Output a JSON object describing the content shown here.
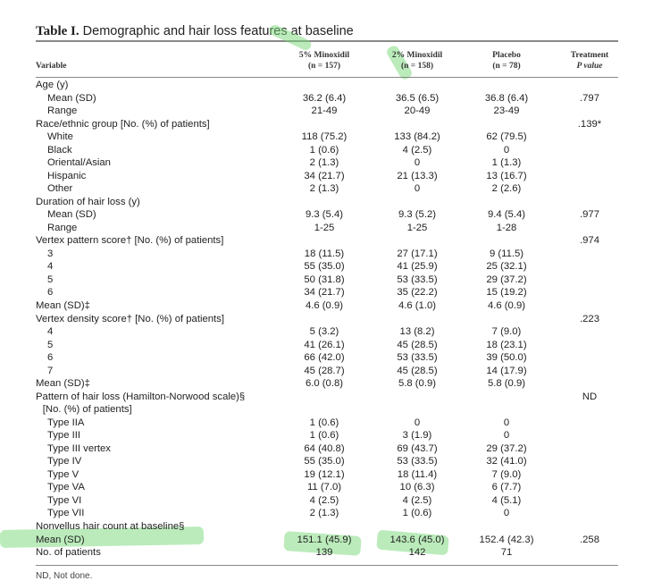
{
  "title": {
    "label": "Table I.",
    "text": "Demographic and hair loss features at baseline"
  },
  "columns": {
    "variable": "Variable",
    "c1": [
      "5% Minoxidil",
      "(n = 157)"
    ],
    "c2": [
      "2% Minoxidil",
      "(n = 158)"
    ],
    "c3": [
      "Placebo",
      "(n = 78)"
    ],
    "c4": [
      "Treatment",
      "P value"
    ]
  },
  "rows": [
    {
      "label": "Age (y)",
      "indent": 0,
      "v": [
        "",
        "",
        "",
        ""
      ]
    },
    {
      "label": "Mean (SD)",
      "indent": 1,
      "v": [
        "36.2 (6.4)",
        "36.5 (6.5)",
        "36.8 (6.4)",
        ".797"
      ]
    },
    {
      "label": "Range",
      "indent": 1,
      "v": [
        "21-49",
        "20-49",
        "23-49",
        ""
      ]
    },
    {
      "label": "Race/ethnic group [No. (%) of patients]",
      "indent": 0,
      "v": [
        "",
        "",
        "",
        ".139*"
      ]
    },
    {
      "label": "White",
      "indent": 1,
      "v": [
        "118 (75.2)",
        "133 (84.2)",
        "62 (79.5)",
        ""
      ]
    },
    {
      "label": "Black",
      "indent": 1,
      "v": [
        "1 (0.6)",
        "4 (2.5)",
        "0",
        ""
      ]
    },
    {
      "label": "Oriental/Asian",
      "indent": 1,
      "v": [
        "2 (1.3)",
        "0",
        "1 (1.3)",
        ""
      ]
    },
    {
      "label": "Hispanic",
      "indent": 1,
      "v": [
        "34 (21.7)",
        "21 (13.3)",
        "13 (16.7)",
        ""
      ]
    },
    {
      "label": "Other",
      "indent": 1,
      "v": [
        "2 (1.3)",
        "0",
        "2 (2.6)",
        ""
      ]
    },
    {
      "label": "Duration of hair loss (y)",
      "indent": 0,
      "v": [
        "",
        "",
        "",
        ""
      ]
    },
    {
      "label": "Mean (SD)",
      "indent": 1,
      "v": [
        "9.3 (5.4)",
        "9.3 (5.2)",
        "9.4 (5.4)",
        ".977"
      ]
    },
    {
      "label": "Range",
      "indent": 1,
      "v": [
        "1-25",
        "1-25",
        "1-28",
        ""
      ]
    },
    {
      "label": "Vertex pattern score† [No. (%) of patients]",
      "indent": 0,
      "v": [
        "",
        "",
        "",
        ".974"
      ]
    },
    {
      "label": "3",
      "indent": 1,
      "v": [
        "18 (11.5)",
        "27 (17.1)",
        "9 (11.5)",
        ""
      ]
    },
    {
      "label": "4",
      "indent": 1,
      "v": [
        "55 (35.0)",
        "41 (25.9)",
        "25 (32.1)",
        ""
      ]
    },
    {
      "label": "5",
      "indent": 1,
      "v": [
        "50 (31.8)",
        "53 (33.5)",
        "29 (37.2)",
        ""
      ]
    },
    {
      "label": "6",
      "indent": 1,
      "v": [
        "34 (21.7)",
        "35 (22.2)",
        "15 (19.2)",
        ""
      ]
    },
    {
      "label": "Mean (SD)‡",
      "indent": 0,
      "v": [
        "4.6 (0.9)",
        "4.6 (1.0)",
        "4.6 (0.9)",
        ""
      ]
    },
    {
      "label": "Vertex density score† [No. (%) of patients]",
      "indent": 0,
      "v": [
        "",
        "",
        "",
        ".223"
      ]
    },
    {
      "label": "4",
      "indent": 1,
      "v": [
        "5 (3.2)",
        "13 (8.2)",
        "7 (9.0)",
        ""
      ]
    },
    {
      "label": "5",
      "indent": 1,
      "v": [
        "41 (26.1)",
        "45 (28.5)",
        "18 (23.1)",
        ""
      ]
    },
    {
      "label": "6",
      "indent": 1,
      "v": [
        "66 (42.0)",
        "53 (33.5)",
        "39 (50.0)",
        ""
      ]
    },
    {
      "label": "7",
      "indent": 1,
      "v": [
        "45 (28.7)",
        "45 (28.5)",
        "14 (17.9)",
        ""
      ]
    },
    {
      "label": "Mean (SD)‡",
      "indent": 0,
      "v": [
        "6.0 (0.8)",
        "5.8 (0.9)",
        "5.8 (0.9)",
        ""
      ]
    },
    {
      "label": "Pattern of hair loss (Hamilton-Norwood scale)§",
      "indent": 0,
      "v": [
        "",
        "",
        "",
        "ND"
      ]
    },
    {
      "label": "[No. (%) of patients]",
      "indent": 0.6,
      "v": [
        "",
        "",
        "",
        ""
      ]
    },
    {
      "label": "Type IIA",
      "indent": 1,
      "v": [
        "1 (0.6)",
        "0",
        "0",
        ""
      ]
    },
    {
      "label": "Type III",
      "indent": 1,
      "v": [
        "1 (0.6)",
        "3 (1.9)",
        "0",
        ""
      ]
    },
    {
      "label": "Type III vertex",
      "indent": 1,
      "v": [
        "64 (40.8)",
        "69 (43.7)",
        "29 (37.2)",
        ""
      ]
    },
    {
      "label": "Type IV",
      "indent": 1,
      "v": [
        "55 (35.0)",
        "53 (33.5)",
        "32 (41.0)",
        ""
      ]
    },
    {
      "label": "Type V",
      "indent": 1,
      "v": [
        "19 (12.1)",
        "18 (11.4)",
        "7 (9.0)",
        ""
      ]
    },
    {
      "label": "Type VA",
      "indent": 1,
      "v": [
        "11 (7.0)",
        "10 (6.3)",
        "6 (7.7)",
        ""
      ]
    },
    {
      "label": "Type VI",
      "indent": 1,
      "v": [
        "4 (2.5)",
        "4 (2.5)",
        "4 (5.1)",
        ""
      ]
    },
    {
      "label": "Type VII",
      "indent": 1,
      "v": [
        "2 (1.3)",
        "1 (0.6)",
        "0",
        ""
      ]
    },
    {
      "label": "Nonvellus hair count at baseline§",
      "indent": 0,
      "v": [
        "",
        "",
        "",
        ""
      ]
    },
    {
      "label": "Mean (SD)",
      "indent": 0,
      "v": [
        "151.1 (45.9)",
        "143.6 (45.0)",
        "152.4 (42.3)",
        ".258"
      ]
    },
    {
      "label": "No. of patients",
      "indent": 0,
      "v": [
        "139",
        "142",
        "71",
        ""
      ]
    }
  ],
  "footnote": "ND, Not done.",
  "highlight_color": "#78d778"
}
